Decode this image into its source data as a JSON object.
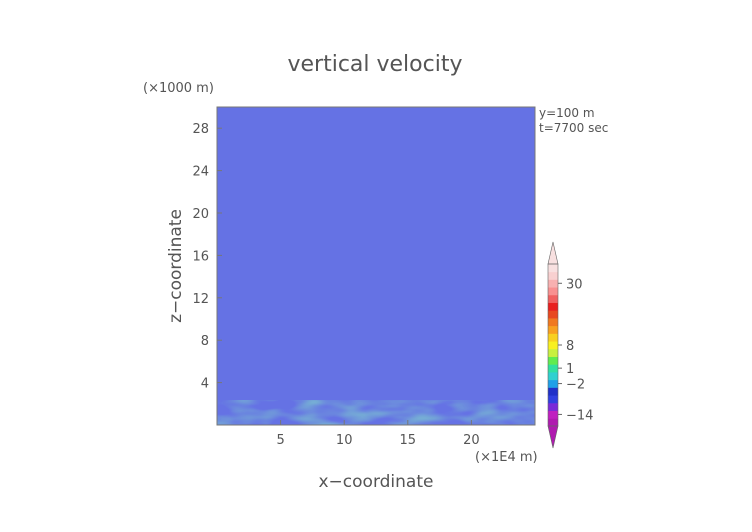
{
  "chart_data": {
    "type": "heatmap",
    "title": "vertical velocity",
    "xlabel": "x−coordinate",
    "ylabel": "z−coordinate",
    "x_unit": "(×1E4 m)",
    "y_unit": "(×1000 m)",
    "annotations": [
      "y=100 m",
      "t=7700 sec"
    ],
    "xlim": [
      0,
      25
    ],
    "ylim": [
      0,
      30
    ],
    "x_ticks": [
      5,
      10,
      15,
      20
    ],
    "y_ticks": [
      4,
      8,
      12,
      16,
      20,
      24,
      28
    ],
    "colorbar": {
      "tick_labels": [
        "30",
        "8",
        "1",
        "−2",
        "−14"
      ],
      "tick_values": [
        30,
        8,
        1,
        -2,
        -14
      ],
      "extends": "both",
      "colors": [
        "#b01ab0",
        "#c020c0",
        "#7a2ad8",
        "#3040e0",
        "#2030c8",
        "#20a0e8",
        "#30d0d0",
        "#30e0a0",
        "#60ec50",
        "#c8f040",
        "#f8f020",
        "#f8d020",
        "#f8a020",
        "#f07820",
        "#e84820",
        "#e82020",
        "#f06060",
        "#f89090",
        "#f8b0b0",
        "#f8d0d0",
        "#f8e0e0"
      ]
    }
  }
}
